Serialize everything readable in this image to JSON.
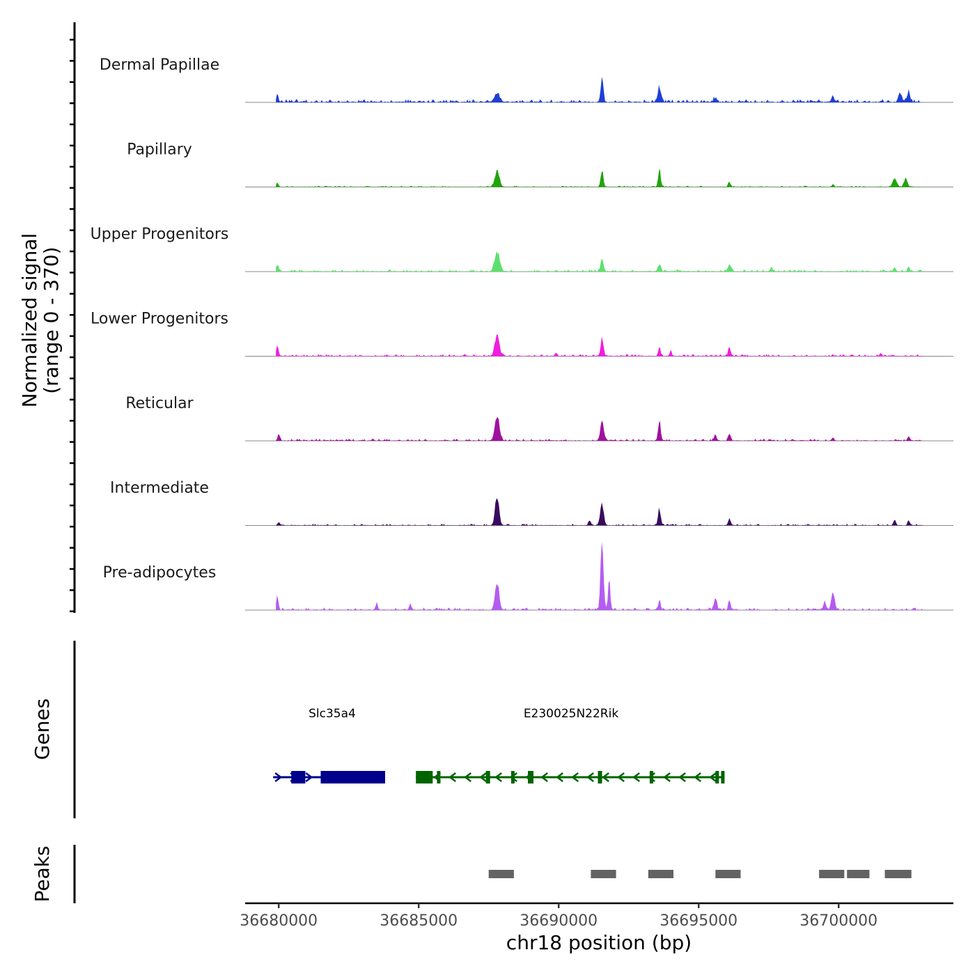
{
  "chart_data": {
    "type": "area",
    "title": "",
    "xlabel": "chr18 position (bp)",
    "ylabel_line1": "Normalized signal",
    "ylabel_line2": "(range 0 - 370)",
    "genes_label": "Genes",
    "peaks_label": "Peaks",
    "ylim": [
      0,
      370
    ],
    "xlim": [
      36678800,
      36704100
    ],
    "x_ticks": [
      36680000,
      36685000,
      36690000,
      36695000,
      36700000
    ],
    "x_tick_labels": [
      "36680000",
      "36685000",
      "36690000",
      "36695000",
      "36700000"
    ],
    "signal_range": [
      36679900,
      36703000
    ],
    "tracks": [
      {
        "name": "Dermal Papillae",
        "color": "#1f3fd6",
        "baseline": 15,
        "peaks": [
          [
            36679950,
            28,
            40
          ],
          [
            36687800,
            40,
            90
          ],
          [
            36691550,
            110,
            45
          ],
          [
            36693600,
            65,
            60
          ],
          [
            36695600,
            20,
            60
          ],
          [
            36699800,
            25,
            50
          ],
          [
            36702200,
            45,
            60
          ],
          [
            36702500,
            55,
            50
          ]
        ]
      },
      {
        "name": "Papillary",
        "color": "#1fa50a",
        "baseline": 6,
        "peaks": [
          [
            36679950,
            20,
            40
          ],
          [
            36687800,
            80,
            80
          ],
          [
            36691550,
            85,
            45
          ],
          [
            36693600,
            80,
            45
          ],
          [
            36696100,
            25,
            40
          ],
          [
            36699800,
            12,
            40
          ],
          [
            36702000,
            38,
            70
          ],
          [
            36702400,
            42,
            60
          ]
        ]
      },
      {
        "name": "Upper Progenitors",
        "color": "#5ee06e",
        "baseline": 10,
        "peaks": [
          [
            36679950,
            30,
            50
          ],
          [
            36687800,
            95,
            90
          ],
          [
            36691550,
            60,
            50
          ],
          [
            36693600,
            35,
            50
          ],
          [
            36696100,
            30,
            60
          ],
          [
            36697600,
            20,
            40
          ],
          [
            36702000,
            20,
            40
          ],
          [
            36702500,
            22,
            40
          ]
        ]
      },
      {
        "name": "Lower Progenitors",
        "color": "#f01ee0",
        "baseline": 10,
        "peaks": [
          [
            36679950,
            55,
            40
          ],
          [
            36687800,
            95,
            80
          ],
          [
            36691550,
            85,
            50
          ],
          [
            36693600,
            40,
            40
          ],
          [
            36694000,
            20,
            40
          ],
          [
            36696100,
            40,
            40
          ],
          [
            36689900,
            15,
            40
          ],
          [
            36701500,
            12,
            40
          ]
        ]
      },
      {
        "name": "Reticular",
        "color": "#a0119e",
        "baseline": 10,
        "peaks": [
          [
            36680000,
            30,
            40
          ],
          [
            36687800,
            115,
            80
          ],
          [
            36691550,
            100,
            60
          ],
          [
            36693600,
            95,
            45
          ],
          [
            36695600,
            30,
            40
          ],
          [
            36696100,
            35,
            40
          ],
          [
            36699800,
            15,
            40
          ],
          [
            36702500,
            20,
            40
          ]
        ]
      },
      {
        "name": "Intermediate",
        "color": "#3a0a5e",
        "baseline": 8,
        "peaks": [
          [
            36680000,
            15,
            40
          ],
          [
            36687800,
            140,
            70
          ],
          [
            36691550,
            105,
            60
          ],
          [
            36693600,
            80,
            45
          ],
          [
            36696100,
            35,
            40
          ],
          [
            36702000,
            30,
            40
          ],
          [
            36702500,
            25,
            40
          ],
          [
            36691100,
            25,
            40
          ]
        ]
      },
      {
        "name": "Pre-adipocytes",
        "color": "#b45cf0",
        "baseline": 12,
        "peaks": [
          [
            36679950,
            60,
            40
          ],
          [
            36687800,
            135,
            70
          ],
          [
            36691550,
            370,
            50
          ],
          [
            36691800,
            140,
            40
          ],
          [
            36693600,
            50,
            40
          ],
          [
            36695600,
            60,
            50
          ],
          [
            36696100,
            50,
            40
          ],
          [
            36699800,
            85,
            60
          ],
          [
            36699500,
            40,
            40
          ],
          [
            36684700,
            30,
            40
          ],
          [
            36683500,
            30,
            40
          ]
        ]
      }
    ],
    "genes": [
      {
        "name": "Slc35a4",
        "strand": "+",
        "color": "#00008b",
        "start": 36679800,
        "end": 36683800,
        "exons": [
          [
            36680450,
            36680950
          ],
          [
            36681500,
            36683800
          ]
        ]
      },
      {
        "name": "E230025N22Rik",
        "strand": "-",
        "color": "#006400",
        "start": 36684900,
        "end": 36695900,
        "exons": [
          [
            36684900,
            36685500
          ],
          [
            36685650,
            36685750
          ],
          [
            36687400,
            36687550
          ],
          [
            36688300,
            36688380
          ],
          [
            36688900,
            36689100
          ],
          [
            36691400,
            36691550
          ],
          [
            36693250,
            36693350
          ],
          [
            36695600,
            36695700
          ],
          [
            36695800,
            36695900
          ]
        ]
      }
    ],
    "peak_regions": [
      [
        36687500,
        36688400
      ],
      [
        36691150,
        36692050
      ],
      [
        36693200,
        36694100
      ],
      [
        36695600,
        36696500
      ],
      [
        36699300,
        36700200
      ],
      [
        36700300,
        36701100
      ],
      [
        36701650,
        36702600
      ]
    ]
  }
}
